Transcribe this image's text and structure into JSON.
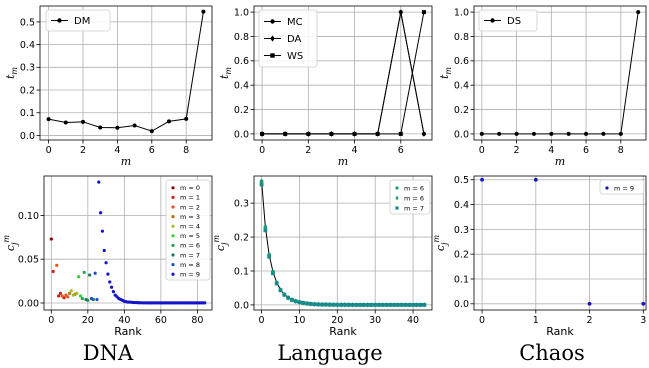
{
  "column_titles": [
    "DNA",
    "Language",
    "Chaos"
  ],
  "chart_data": [
    {
      "type": "line",
      "xlabel": "m",
      "ylabel": "t_m",
      "xlim": [
        -0.5,
        9.5
      ],
      "ylim": [
        -0.02,
        0.57
      ],
      "xticks": [
        0,
        2,
        4,
        6,
        8
      ],
      "yticks": [
        0.0,
        0.1,
        0.2,
        0.3,
        0.4,
        0.5
      ],
      "grid": true,
      "legend_position": "top-left",
      "series": [
        {
          "name": "DM",
          "marker": "circle",
          "color": "#000000",
          "x": [
            0,
            1,
            2,
            3,
            4,
            5,
            6,
            7,
            8,
            9
          ],
          "y": [
            0.072,
            0.057,
            0.06,
            0.035,
            0.034,
            0.044,
            0.019,
            0.062,
            0.073,
            0.545
          ]
        }
      ]
    },
    {
      "type": "line",
      "xlabel": "m",
      "ylabel": "t_m",
      "xlim": [
        -0.35,
        7.35
      ],
      "ylim": [
        -0.05,
        1.05
      ],
      "xticks": [
        0,
        2,
        4,
        6
      ],
      "yticks": [
        0.0,
        0.2,
        0.4,
        0.6,
        0.8,
        1.0
      ],
      "grid": true,
      "legend_position": "top-left",
      "series": [
        {
          "name": "MC",
          "marker": "circle",
          "color": "#000000",
          "x": [
            0,
            1,
            2,
            3,
            4,
            5,
            6,
            7
          ],
          "y": [
            0,
            0,
            0,
            0,
            0,
            0,
            1,
            0
          ]
        },
        {
          "name": "DA",
          "marker": "diamond",
          "color": "#000000",
          "x": [
            0,
            1,
            2,
            3,
            4,
            5,
            6,
            7
          ],
          "y": [
            0,
            0,
            0,
            0,
            0,
            0,
            1,
            0
          ]
        },
        {
          "name": "WS",
          "marker": "square",
          "color": "#000000",
          "x": [
            0,
            1,
            2,
            3,
            4,
            5,
            6,
            7
          ],
          "y": [
            0,
            0,
            0,
            0,
            0,
            0,
            0,
            1
          ]
        }
      ]
    },
    {
      "type": "line",
      "xlabel": "m",
      "ylabel": "t_m",
      "xlim": [
        -0.45,
        9.45
      ],
      "ylim": [
        -0.05,
        1.05
      ],
      "xticks": [
        0,
        2,
        4,
        6,
        8
      ],
      "yticks": [
        0.0,
        0.2,
        0.4,
        0.6,
        0.8,
        1.0
      ],
      "grid": true,
      "legend_position": "top-left",
      "series": [
        {
          "name": "DS",
          "marker": "circle",
          "color": "#000000",
          "x": [
            0,
            1,
            2,
            3,
            4,
            5,
            6,
            7,
            8,
            9
          ],
          "y": [
            0,
            0,
            0,
            0,
            0,
            0,
            0,
            0,
            0,
            1
          ]
        }
      ]
    },
    {
      "type": "scatter",
      "xlabel": "Rank",
      "ylabel": "c_j^m",
      "xlim": [
        -4,
        88
      ],
      "ylim": [
        -0.008,
        0.145
      ],
      "xticks": [
        0,
        20,
        40,
        60,
        80
      ],
      "yticks": [
        0.0,
        0.05,
        0.1
      ],
      "grid": true,
      "legend_position": "top-right",
      "series": [
        {
          "name": "m = 0",
          "color": "#8b0000",
          "x": [
            0
          ],
          "y": [
            0.073
          ]
        },
        {
          "name": "m = 1",
          "color": "#d42020",
          "x": [
            1,
            4,
            5,
            7
          ],
          "y": [
            0.036,
            0.008,
            0.011,
            0.006
          ]
        },
        {
          "name": "m = 2",
          "color": "#e8541e",
          "x": [
            3,
            6,
            8,
            9
          ],
          "y": [
            0.043,
            0.008,
            0.009,
            0.007
          ]
        },
        {
          "name": "m = 3",
          "color": "#b8700e",
          "x": [
            10,
            13
          ],
          "y": [
            0.011,
            0.01
          ]
        },
        {
          "name": "m = 4",
          "color": "#a0c032",
          "x": [
            11,
            12,
            14
          ],
          "y": [
            0.014,
            0.009,
            0.011
          ]
        },
        {
          "name": "m = 5",
          "color": "#32cd32",
          "x": [
            15,
            16
          ],
          "y": [
            0.03,
            0.008
          ]
        },
        {
          "name": "m = 6",
          "color": "#2e9e4e",
          "x": [
            17,
            18,
            20
          ],
          "y": [
            0.005,
            0.035,
            0.003
          ]
        },
        {
          "name": "m = 7",
          "color": "#1e7a5a",
          "x": [
            19,
            21,
            23
          ],
          "y": [
            0.004,
            0.032,
            0.004
          ]
        },
        {
          "name": "m = 8",
          "color": "#1c4fd8",
          "x": [
            22,
            24,
            25
          ],
          "y": [
            0.005,
            0.034,
            0.004
          ]
        },
        {
          "name": "m = 9",
          "color": "#1414c8",
          "x": [
            26,
            27,
            28,
            29,
            30,
            31,
            32,
            33,
            34,
            35,
            36,
            37,
            38,
            39,
            40,
            41,
            42,
            43,
            44,
            45,
            46,
            47,
            48,
            49,
            50,
            51,
            52,
            53,
            54,
            55,
            56,
            57,
            58,
            59,
            60,
            61,
            62,
            63,
            64,
            65,
            66,
            67,
            68,
            69,
            70,
            71,
            72,
            73,
            74,
            75,
            76,
            77,
            78,
            79,
            80,
            81,
            82,
            83,
            84
          ],
          "y": [
            0.138,
            0.103,
            0.082,
            0.06,
            0.046,
            0.033,
            0.024,
            0.018,
            0.013,
            0.009,
            0.007,
            0.005,
            0.004,
            0.003,
            0.002,
            0.0015,
            0.001,
            0.001,
            0.0008,
            0.0006,
            0.0005,
            0.0004,
            0.0003,
            0.0003,
            0.0002,
            0.0002,
            0.0002,
            0.0001,
            0.0001,
            0.0001,
            0.0001,
            0.0001,
            0.0001,
            0.0001,
            0.0001,
            0.0001,
            0.0001,
            0.0001,
            0.0001,
            0.0001,
            0.0001,
            0.0001,
            0.0001,
            0.0001,
            0.0001,
            0.0001,
            0.0001,
            0.0001,
            0.0001,
            0.0001,
            0.0001,
            0.0001,
            0.0001,
            0.0001,
            0.0001,
            0.0001,
            0.0001,
            0.0001,
            0.0001
          ]
        }
      ]
    },
    {
      "type": "line",
      "xlabel": "Rank",
      "ylabel": "c_j^m",
      "xlim": [
        -2,
        45
      ],
      "ylim": [
        -0.015,
        0.38
      ],
      "xticks": [
        0,
        10,
        20,
        30,
        40
      ],
      "yticks": [
        0.0,
        0.1,
        0.2,
        0.3
      ],
      "grid": true,
      "legend_position": "top-right",
      "series": [
        {
          "name": "m = 6",
          "marker": "circle",
          "color": "#1a9e78",
          "x": [
            0,
            1,
            2,
            3,
            4,
            5,
            6,
            7,
            8,
            9,
            10,
            11,
            12,
            13,
            14,
            15,
            16,
            17,
            18,
            19,
            20,
            21,
            22,
            23,
            24,
            25,
            26,
            27,
            28,
            29,
            30,
            31,
            32,
            33,
            34,
            35,
            36,
            37,
            38,
            39,
            40,
            41,
            42,
            43
          ],
          "y": [
            0.365,
            0.23,
            0.148,
            0.098,
            0.066,
            0.045,
            0.031,
            0.022,
            0.015,
            0.011,
            0.008,
            0.006,
            0.004,
            0.003,
            0.002,
            0.0015,
            0.001,
            0.001,
            0.0007,
            0.0005,
            0.0004,
            0.0003,
            0.0003,
            0.0002,
            0.0002,
            0.0001,
            0.0001,
            0.0001,
            0.0001,
            0.0001,
            0.0001,
            0.0001,
            0.0001,
            0.0001,
            0.0001,
            0.0001,
            0.0001,
            0.0001,
            0.0001,
            0.0001,
            0.0001,
            0.0001,
            0.0001,
            0.0001
          ]
        },
        {
          "name": "m = 6",
          "marker": "diamond",
          "color": "#1a9e78",
          "x": [
            0,
            1,
            2,
            3,
            4,
            5,
            6,
            7,
            8,
            9,
            10,
            11,
            12,
            13,
            14,
            15,
            16,
            17,
            18,
            19,
            20,
            21,
            22,
            23,
            24,
            25,
            26,
            27,
            28,
            29,
            30,
            31,
            32,
            33,
            34,
            35,
            36,
            37,
            38,
            39,
            40,
            41,
            42,
            43
          ],
          "y": [
            0.36,
            0.225,
            0.145,
            0.095,
            0.064,
            0.044,
            0.03,
            0.021,
            0.015,
            0.011,
            0.008,
            0.006,
            0.004,
            0.003,
            0.002,
            0.0015,
            0.001,
            0.001,
            0.0007,
            0.0005,
            0.0004,
            0.0003,
            0.0003,
            0.0002,
            0.0002,
            0.0001,
            0.0001,
            0.0001,
            0.0001,
            0.0001,
            0.0001,
            0.0001,
            0.0001,
            0.0001,
            0.0001,
            0.0001,
            0.0001,
            0.0001,
            0.0001,
            0.0001,
            0.0001,
            0.0001,
            0.0001,
            0.0001
          ]
        },
        {
          "name": "m = 7",
          "marker": "square",
          "color": "#1a8a8a",
          "x": [
            0,
            1,
            2,
            3,
            4,
            5,
            6,
            7,
            8,
            9,
            10,
            11,
            12,
            13,
            14,
            15,
            16,
            17,
            18,
            19,
            20,
            21,
            22,
            23,
            24,
            25,
            26,
            27,
            28,
            29,
            30,
            31,
            32,
            33,
            34,
            35,
            36,
            37,
            38,
            39,
            40,
            41,
            42,
            43
          ],
          "y": [
            0.355,
            0.22,
            0.142,
            0.093,
            0.063,
            0.043,
            0.03,
            0.021,
            0.015,
            0.011,
            0.008,
            0.006,
            0.004,
            0.003,
            0.002,
            0.0015,
            0.001,
            0.001,
            0.0007,
            0.0005,
            0.0004,
            0.0003,
            0.0003,
            0.0002,
            0.0002,
            0.0001,
            0.0001,
            0.0001,
            0.0001,
            0.0001,
            0.0001,
            0.0001,
            0.0001,
            0.0001,
            0.0001,
            0.0001,
            0.0001,
            0.0001,
            0.0001,
            0.0001,
            0.0001,
            0.0001,
            0.0001,
            0.0001
          ]
        }
      ]
    },
    {
      "type": "scatter",
      "xlabel": "Rank",
      "ylabel": "c_j^m",
      "xlim": [
        -0.15,
        3.05
      ],
      "ylim": [
        -0.025,
        0.515
      ],
      "xticks": [
        0,
        1,
        2,
        3
      ],
      "yticks": [
        0.0,
        0.1,
        0.2,
        0.3,
        0.4,
        0.5
      ],
      "grid": true,
      "legend_position": "top-right",
      "series": [
        {
          "name": "m = 9",
          "color": "#1414c8",
          "x": [
            0,
            1,
            2,
            3
          ],
          "y": [
            0.5,
            0.5,
            0.0,
            0.0
          ]
        }
      ]
    }
  ]
}
